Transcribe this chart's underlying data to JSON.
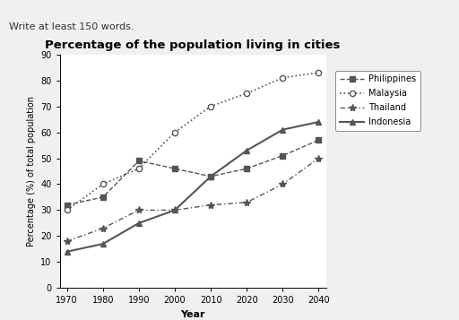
{
  "title": "Percentage of the population living in cities",
  "xlabel": "Year",
  "ylabel": "Percentage (%) of total population",
  "header_text": "Write at least 150 words.",
  "years": [
    1970,
    1980,
    1990,
    2000,
    2010,
    2020,
    2030,
    2040
  ],
  "philippines": [
    32,
    35,
    49,
    46,
    43,
    46,
    51,
    57
  ],
  "malaysia": [
    30,
    40,
    46,
    60,
    70,
    75,
    81,
    83
  ],
  "thailand": [
    18,
    23,
    30,
    30,
    32,
    33,
    40,
    50
  ],
  "indonesia": [
    14,
    17,
    25,
    30,
    43,
    53,
    61,
    64
  ],
  "ylim": [
    0,
    90
  ],
  "yticks": [
    0,
    10,
    20,
    30,
    40,
    50,
    60,
    70,
    80,
    90
  ],
  "line_color": "#555555",
  "background": "#f0f0f0",
  "plot_bg": "#ffffff"
}
